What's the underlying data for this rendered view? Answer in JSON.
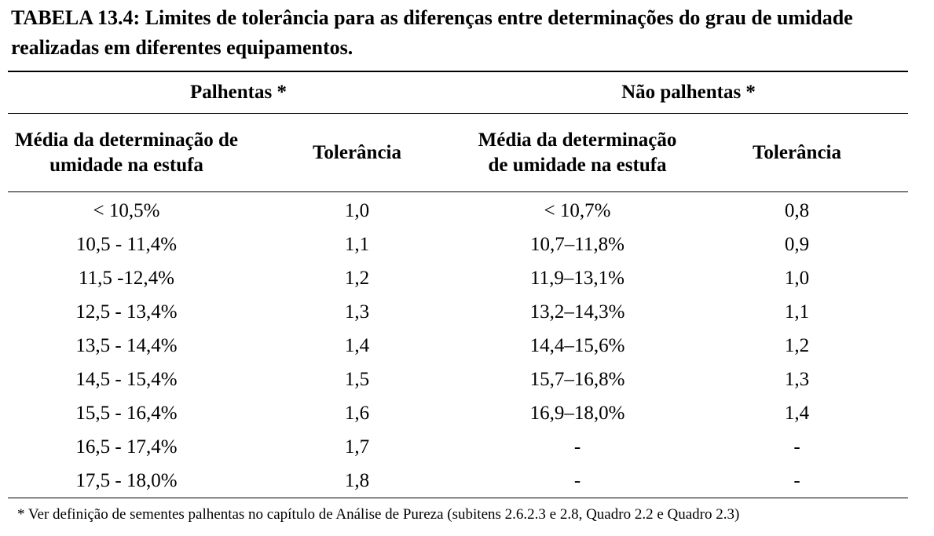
{
  "title": "TABELA 13.4: Limites de tolerância para as diferenças entre determinações do grau de umidade realizadas em diferentes equipamentos.",
  "table": {
    "group_headers": [
      "Palhentas *",
      "Não palhentas *"
    ],
    "column_headers": [
      "Média da determinação de umidade na estufa",
      "Tolerância",
      "Média da determinação de umidade na estufa",
      "Tolerância"
    ],
    "rows": [
      [
        "< 10,5%",
        "1,0",
        "< 10,7%",
        "0,8"
      ],
      [
        "10,5 - 11,4%",
        "1,1",
        "10,7–11,8%",
        "0,9"
      ],
      [
        "11,5 -12,4%",
        "1,2",
        "11,9–13,1%",
        "1,0"
      ],
      [
        "12,5 - 13,4%",
        "1,3",
        "13,2–14,3%",
        "1,1"
      ],
      [
        "13,5 - 14,4%",
        "1,4",
        "14,4–15,6%",
        "1,2"
      ],
      [
        "14,5 - 15,4%",
        "1,5",
        "15,7–16,8%",
        "1,3"
      ],
      [
        "15,5 - 16,4%",
        "1,6",
        "16,9–18,0%",
        "1,4"
      ],
      [
        "16,5 - 17,4%",
        "1,7",
        "-",
        "-"
      ],
      [
        "17,5 - 18,0%",
        "1,8",
        "-",
        "-"
      ]
    ]
  },
  "footnote": "* Ver definição de sementes palhentas no capítulo de Análise de Pureza (subitens 2.6.2.3 e 2.8, Quadro 2.2 e Quadro 2.3)"
}
